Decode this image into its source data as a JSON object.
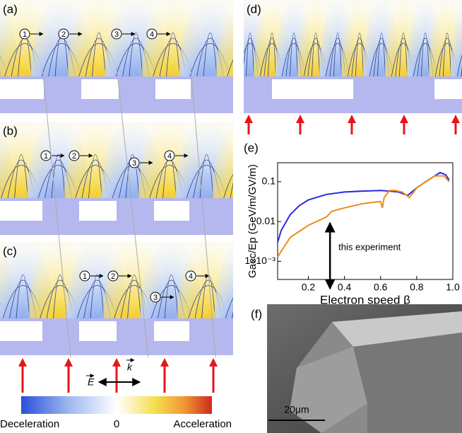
{
  "panel_labels": [
    "(a)",
    "(b)",
    "(c)",
    "(d)",
    "(e)",
    "(f)"
  ],
  "electron_labels": [
    "1",
    "2",
    "3",
    "4"
  ],
  "vectors": {
    "E": "E",
    "k": "k"
  },
  "colorbar": {
    "min_label": "Deceleration",
    "mid_label": "0",
    "max_label": "Acceleration"
  },
  "scale_bar": "20μm",
  "chart_data": {
    "type": "line",
    "xlabel": "Electron speed β",
    "ylabel": "Gacc/Ep (GeV/m/GV/m)",
    "annotation": "this experiment",
    "log_y": true,
    "xlim": [
      0.03,
      1.0
    ],
    "ylim": [
      0.00035,
      0.3
    ],
    "xticks": [
      0.2,
      0.4,
      0.6,
      0.8,
      {
        "value": 1,
        "label": "1.0"
      }
    ],
    "yticks": [
      {
        "value": 0.001,
        "label": "1×10⁻³"
      },
      0.01,
      0.1
    ],
    "series": [
      {
        "color": "#2a2ae0",
        "x": [
          0.03,
          0.05,
          0.1,
          0.15,
          0.2,
          0.3,
          0.4,
          0.5,
          0.6,
          0.65,
          0.7,
          0.75,
          0.8,
          0.85,
          0.9,
          0.93,
          0.96,
          0.98
        ],
        "values": [
          0.003,
          0.006,
          0.015,
          0.025,
          0.035,
          0.048,
          0.055,
          0.058,
          0.06,
          0.058,
          0.055,
          0.045,
          0.07,
          0.1,
          0.14,
          0.17,
          0.15,
          0.11
        ]
      },
      {
        "color": "#f08a1c",
        "x": [
          0.03,
          0.1,
          0.2,
          0.3,
          0.33,
          0.4,
          0.5,
          0.6,
          0.61,
          0.62,
          0.65,
          0.68,
          0.72,
          0.76,
          0.8,
          0.85,
          0.9,
          0.95,
          0.98
        ],
        "values": [
          0.0013,
          0.004,
          0.008,
          0.013,
          0.018,
          0.022,
          0.028,
          0.032,
          0.022,
          0.04,
          0.06,
          0.06,
          0.055,
          0.04,
          0.07,
          0.1,
          0.14,
          0.14,
          0.1
        ]
      }
    ]
  }
}
